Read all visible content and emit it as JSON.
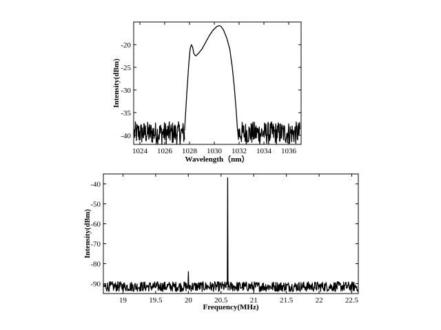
{
  "chart_data": [
    {
      "type": "line",
      "title": "",
      "xlabel": "Wavelength（nm）",
      "ylabel": "Intensity(dBm)",
      "xlim": [
        1023.5,
        1037
      ],
      "ylim": [
        -42,
        -15
      ],
      "xticks": [
        1024,
        1026,
        1028,
        1030,
        1032,
        1034,
        1036
      ],
      "yticks": [
        -20,
        -25,
        -30,
        -35,
        -40
      ],
      "grid": false,
      "noise_floor": [
        -42,
        -37
      ],
      "series": [
        {
          "x": [
            1027.6,
            1027.8,
            1027.95,
            1028.05,
            1028.15,
            1028.25,
            1028.35,
            1028.5,
            1028.7,
            1029.0,
            1029.3,
            1029.6,
            1029.9,
            1030.2,
            1030.4,
            1030.55,
            1030.75,
            1031.0,
            1031.25,
            1031.45,
            1031.6,
            1031.75,
            1031.85,
            1031.95
          ],
          "y": [
            -39,
            -30,
            -24,
            -21,
            -20,
            -20.5,
            -22,
            -22.5,
            -22,
            -21,
            -19.5,
            -18,
            -16.8,
            -16,
            -15.8,
            -16,
            -16.8,
            -18.5,
            -21,
            -25,
            -29,
            -34,
            -38,
            -41
          ]
        }
      ]
    },
    {
      "type": "line",
      "title": "",
      "xlabel": "Frequency(MHz)",
      "ylabel": "Intensity(dBm)",
      "xlim": [
        18.7,
        22.6
      ],
      "ylim": [
        -95,
        -35
      ],
      "xticks": [
        19,
        19.5,
        20,
        20.5,
        21,
        21.5,
        22,
        22.5
      ],
      "yticks": [
        -40,
        -50,
        -60,
        -70,
        -80,
        -90
      ],
      "grid": false,
      "noise_floor": [
        -94,
        -89
      ],
      "peaks": [
        {
          "x": 20.0,
          "y": -84
        },
        {
          "x": 20.6,
          "y": -37
        }
      ]
    }
  ]
}
